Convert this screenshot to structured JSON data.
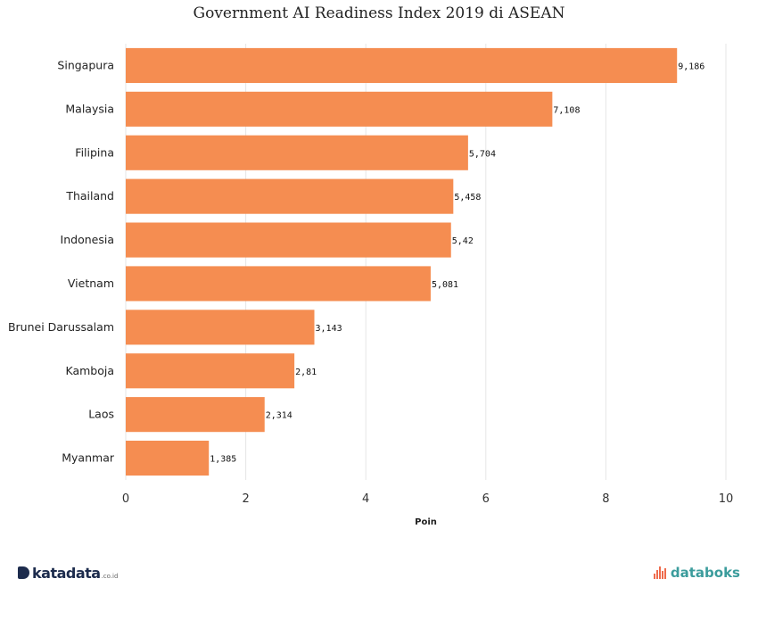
{
  "chart_data": {
    "type": "bar",
    "orientation": "horizontal",
    "title": "Government AI Readiness Index 2019 di ASEAN",
    "xlabel": "Poin",
    "ylabel": "",
    "categories": [
      "Singapura",
      "Malaysia",
      "Filipina",
      "Thailand",
      "Indonesia",
      "Vietnam",
      "Brunei Darussalam",
      "Kamboja",
      "Laos",
      "Myanmar"
    ],
    "values": [
      9.186,
      7.108,
      5.704,
      5.458,
      5.42,
      5.081,
      3.143,
      2.81,
      2.314,
      1.385
    ],
    "value_labels": [
      "9,186",
      "7,108",
      "5,704",
      "5,458",
      "5,42",
      "5,081",
      "3,143",
      "2,81",
      "2,314",
      "1,385"
    ],
    "xlim": [
      0,
      10
    ],
    "xticks": [
      0,
      2,
      4,
      6,
      8,
      10
    ],
    "xtick_labels": [
      "0",
      "2",
      "4",
      "6",
      "8",
      "10"
    ],
    "grid": true,
    "legend": "none",
    "bar_color": "#f58d51"
  },
  "footer": {
    "brand_left": "katadata",
    "brand_left_suffix": ".co.id",
    "brand_right": "databoks"
  },
  "colors": {
    "brand_left": "#1d2c4d",
    "brand_right": "#3b9c9c",
    "brand_right_icon": "#ef6a4c"
  }
}
